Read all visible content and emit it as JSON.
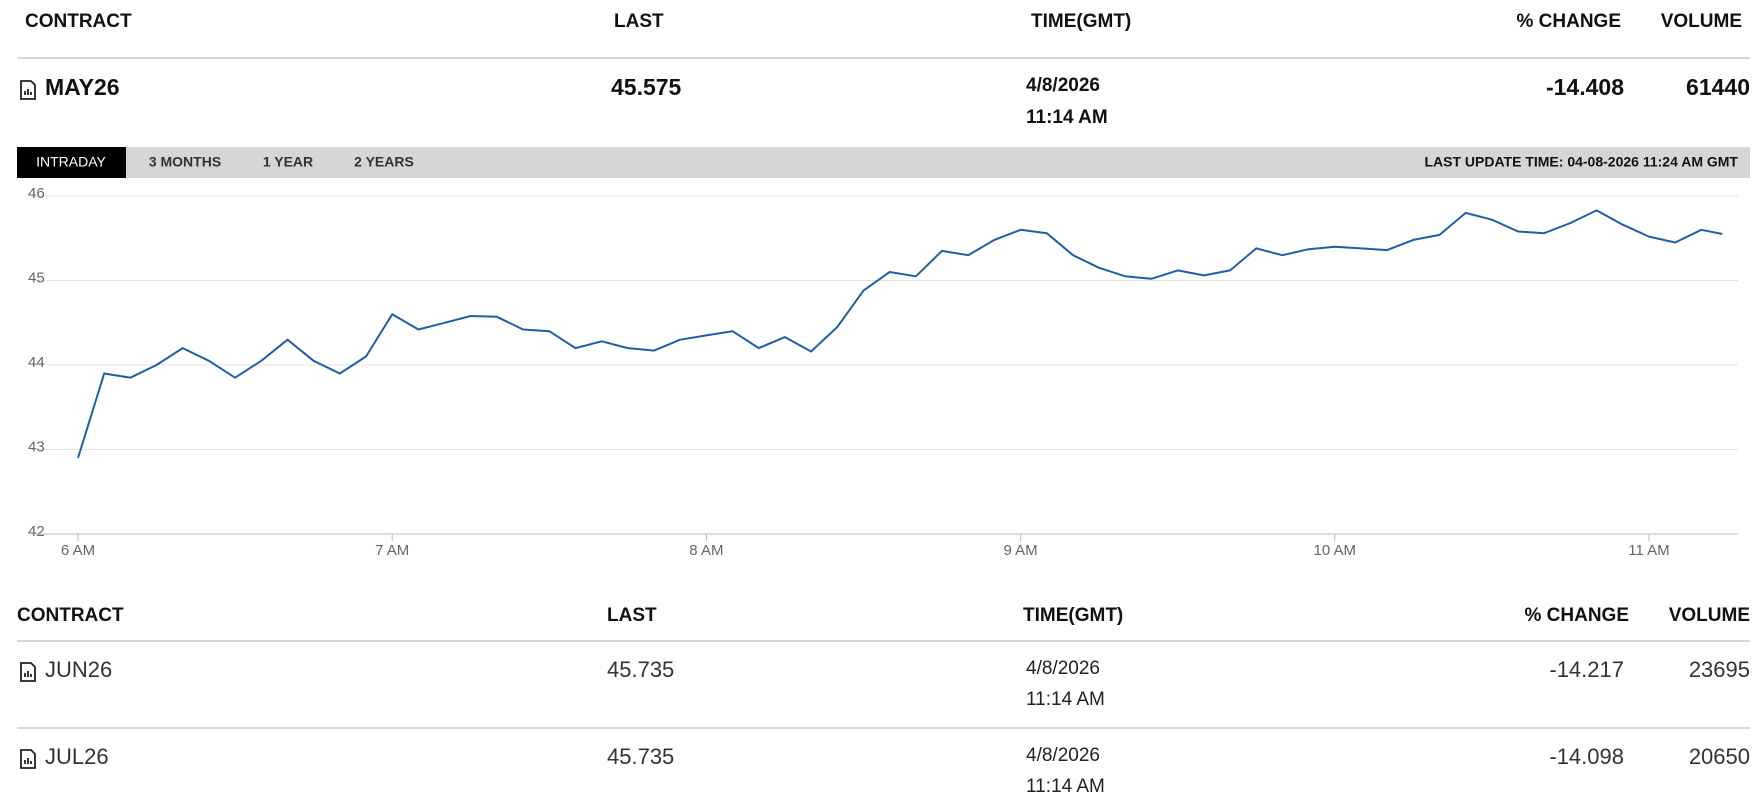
{
  "header": {
    "columns": [
      "CONTRACT",
      "LAST",
      "TIME(GMT)",
      "% CHANGE",
      "VOLUME"
    ]
  },
  "main_row": {
    "contract": "MAY26",
    "last": "45.575",
    "date": "4/8/2026",
    "time": "11:14 AM",
    "change": "-14.408",
    "volume": "61440"
  },
  "tabs": [
    "INTRADAY",
    "3 MONTHS",
    "1 YEAR",
    "2 YEARS"
  ],
  "last_update": "LAST UPDATE TIME: 04-08-2026 11:24 AM GMT",
  "chart_data": {
    "type": "line",
    "x": [
      360,
      365,
      370,
      375,
      380,
      385,
      390,
      395,
      400,
      405,
      410,
      415,
      420,
      425,
      430,
      435,
      440,
      445,
      450,
      455,
      460,
      465,
      470,
      475,
      480,
      485,
      490,
      495,
      500,
      505,
      510,
      515,
      520,
      525,
      530,
      535,
      540,
      545,
      550,
      555,
      560,
      565,
      570,
      575,
      580,
      585,
      590,
      595,
      600,
      605,
      610,
      615,
      620,
      625,
      630,
      635,
      640,
      645,
      650,
      655,
      660,
      665,
      670,
      674
    ],
    "series": [
      {
        "color": "#1f5fa6",
        "values": [
          42.9,
          43.9,
          43.85,
          44.0,
          44.2,
          44.05,
          43.85,
          44.05,
          44.3,
          44.05,
          43.9,
          44.1,
          44.6,
          44.42,
          44.5,
          44.58,
          44.57,
          44.42,
          44.4,
          44.2,
          44.28,
          44.2,
          44.17,
          44.3,
          44.35,
          44.4,
          44.2,
          44.33,
          44.16,
          44.45,
          44.88,
          45.1,
          45.05,
          45.35,
          45.3,
          45.48,
          45.6,
          45.56,
          45.3,
          45.15,
          45.05,
          45.02,
          45.12,
          45.06,
          45.12,
          45.38,
          45.3,
          45.37,
          45.4,
          45.38,
          45.36,
          45.48,
          45.54,
          45.8,
          45.72,
          45.58,
          45.56,
          45.68,
          45.83,
          45.66,
          45.52,
          45.45,
          45.6,
          45.55
        ]
      }
    ],
    "xlim": [
      360,
      677
    ],
    "xticks": [
      {
        "value": 360,
        "label": "6 AM"
      },
      {
        "value": 420,
        "label": "7 AM"
      },
      {
        "value": 480,
        "label": "8 AM"
      },
      {
        "value": 540,
        "label": "9 AM"
      },
      {
        "value": 600,
        "label": "10 AM"
      },
      {
        "value": 660,
        "label": "11 AM"
      }
    ],
    "ylim": [
      42,
      46
    ],
    "yticks": [
      42,
      43,
      44,
      45,
      46
    ],
    "grid": true
  },
  "table": {
    "columns": [
      "CONTRACT",
      "LAST",
      "TIME(GMT)",
      "% CHANGE",
      "VOLUME"
    ],
    "rows": [
      [
        "JUN26",
        "45.735",
        "4/8/2026",
        "11:14 AM",
        "-14.217",
        "23695"
      ],
      [
        "JUL26",
        "45.735",
        "4/8/2026",
        "11:14 AM",
        "-14.098",
        "20650"
      ]
    ]
  }
}
